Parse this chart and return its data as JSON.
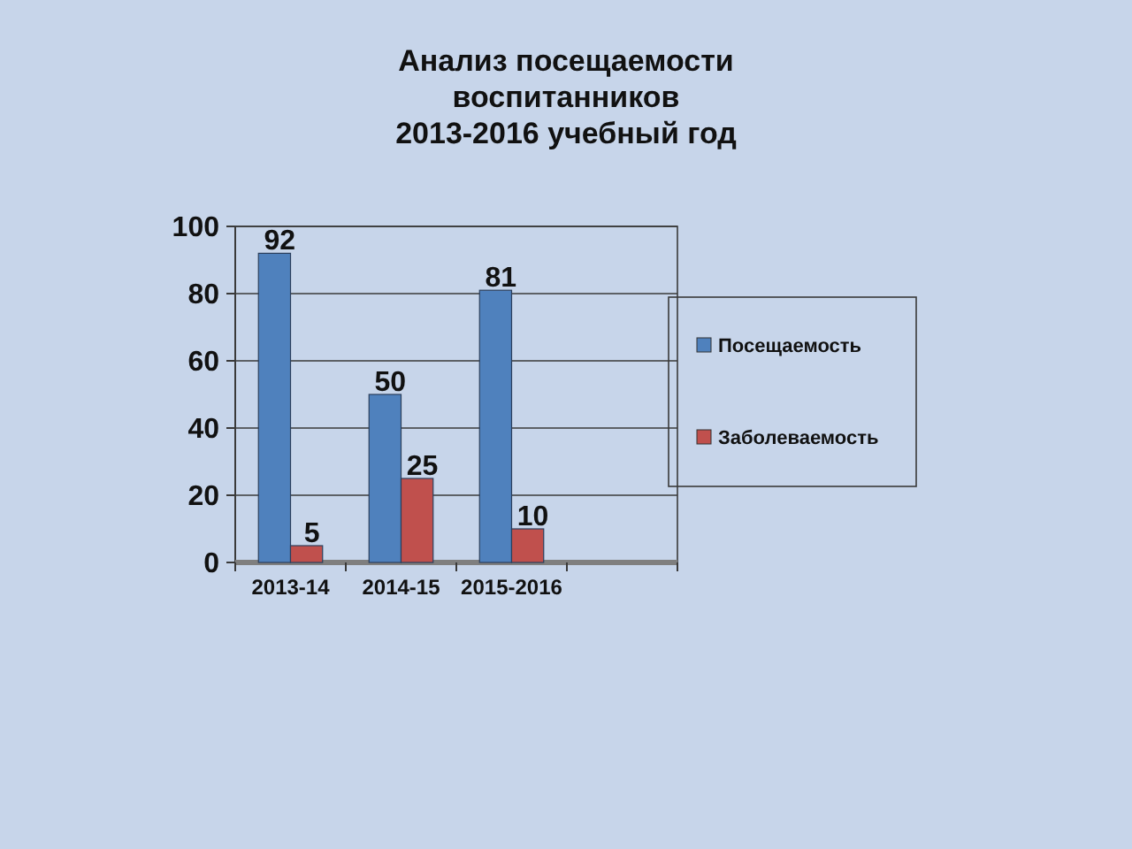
{
  "chart_data": {
    "type": "bar",
    "title": "Анализ посещаемости\nвоспитанников\n2013-2016 учебный год",
    "categories": [
      "2013-14",
      "2014-15",
      "2015-2016",
      null
    ],
    "series": [
      {
        "name": "Посещаемость",
        "color": "#4f81bd",
        "values": [
          92,
          50,
          81,
          null
        ]
      },
      {
        "name": "Заболеваемость",
        "color": "#c0504d",
        "values": [
          5,
          25,
          10,
          null
        ]
      }
    ],
    "ylim": [
      0,
      100
    ],
    "yticks": [
      0,
      20,
      40,
      60,
      80,
      100
    ],
    "grid": "y",
    "legend": "right",
    "data_labels": true
  }
}
